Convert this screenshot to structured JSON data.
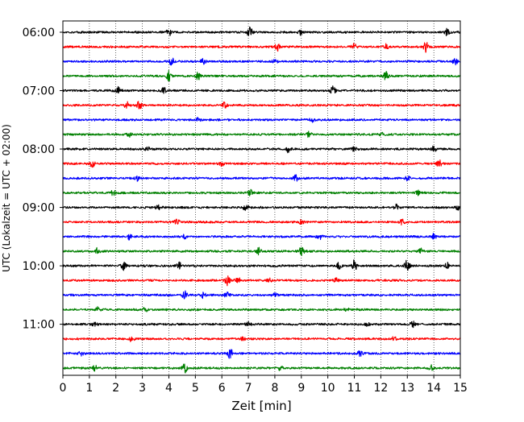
{
  "chart_data": {
    "type": "line",
    "title": "",
    "xlabel": "Zeit  [min]",
    "ylabel": "UTC (Lokalzeit = UTC + 02:00)",
    "xlim": [
      0,
      15
    ],
    "xticks": [
      "0",
      "1",
      "2",
      "3",
      "4",
      "5",
      "6",
      "7",
      "8",
      "9",
      "10",
      "11",
      "12",
      "13",
      "14",
      "15"
    ],
    "y_tick_labels": [
      "06:00",
      "07:00",
      "08:00",
      "09:00",
      "10:00",
      "11:00"
    ],
    "grid": "vertical dotted",
    "trace_interval_minutes": 15,
    "trace_colors": [
      "#000000",
      "#ff0000",
      "#0000ff",
      "#008000"
    ],
    "traces": [
      {
        "start": "06:00",
        "color": "#000000",
        "events": [
          [
            4.0,
            0.5
          ],
          [
            7.05,
            0.8
          ],
          [
            9.0,
            0.4
          ],
          [
            14.5,
            0.6
          ]
        ]
      },
      {
        "start": "06:15",
        "color": "#ff0000",
        "events": [
          [
            8.1,
            0.5
          ],
          [
            11.0,
            0.5
          ],
          [
            12.2,
            0.4
          ],
          [
            13.7,
            0.7
          ]
        ]
      },
      {
        "start": "06:30",
        "color": "#0000ff",
        "events": [
          [
            4.1,
            0.6
          ],
          [
            5.3,
            0.4
          ],
          [
            8.0,
            0.3
          ],
          [
            14.8,
            0.4
          ]
        ]
      },
      {
        "start": "06:45",
        "color": "#008000",
        "events": [
          [
            4.0,
            0.7
          ],
          [
            5.1,
            0.5
          ],
          [
            12.2,
            0.6
          ]
        ]
      },
      {
        "start": "07:00",
        "color": "#000000",
        "events": [
          [
            2.1,
            0.5
          ],
          [
            3.8,
            0.4
          ],
          [
            10.2,
            0.6
          ]
        ]
      },
      {
        "start": "07:15",
        "color": "#ff0000",
        "events": [
          [
            2.4,
            0.5
          ],
          [
            2.9,
            0.7
          ],
          [
            6.1,
            0.4
          ]
        ]
      },
      {
        "start": "07:30",
        "color": "#0000ff",
        "events": [
          [
            5.1,
            0.3
          ],
          [
            9.4,
            0.3
          ]
        ]
      },
      {
        "start": "07:45",
        "color": "#008000",
        "events": [
          [
            2.5,
            0.3
          ],
          [
            9.3,
            0.4
          ],
          [
            12.0,
            0.3
          ]
        ]
      },
      {
        "start": "08:00",
        "color": "#000000",
        "events": [
          [
            3.2,
            0.3
          ],
          [
            8.5,
            0.5
          ],
          [
            11.0,
            0.3
          ],
          [
            14.0,
            0.4
          ]
        ]
      },
      {
        "start": "08:15",
        "color": "#ff0000",
        "events": [
          [
            1.1,
            0.6
          ],
          [
            6.0,
            0.3
          ],
          [
            14.2,
            0.5
          ]
        ]
      },
      {
        "start": "08:30",
        "color": "#0000ff",
        "events": [
          [
            2.8,
            0.3
          ],
          [
            8.8,
            0.5
          ],
          [
            13.0,
            0.3
          ]
        ]
      },
      {
        "start": "08:45",
        "color": "#008000",
        "events": [
          [
            1.9,
            0.4
          ],
          [
            7.1,
            0.5
          ],
          [
            13.4,
            0.3
          ]
        ]
      },
      {
        "start": "09:00",
        "color": "#000000",
        "events": [
          [
            3.6,
            0.3
          ],
          [
            6.9,
            0.4
          ],
          [
            12.6,
            0.5
          ],
          [
            14.9,
            0.4
          ]
        ]
      },
      {
        "start": "09:15",
        "color": "#ff0000",
        "events": [
          [
            4.3,
            0.4
          ],
          [
            9.0,
            0.3
          ],
          [
            12.8,
            0.4
          ]
        ]
      },
      {
        "start": "09:30",
        "color": "#0000ff",
        "events": [
          [
            2.5,
            0.4
          ],
          [
            4.6,
            0.3
          ],
          [
            9.7,
            0.4
          ],
          [
            14.0,
            0.4
          ]
        ]
      },
      {
        "start": "09:45",
        "color": "#008000",
        "events": [
          [
            1.3,
            0.4
          ],
          [
            7.4,
            0.5
          ],
          [
            9.0,
            0.6
          ],
          [
            13.5,
            0.4
          ]
        ]
      },
      {
        "start": "10:00",
        "color": "#000000",
        "events": [
          [
            2.3,
            0.6
          ],
          [
            4.4,
            0.5
          ],
          [
            10.4,
            0.5
          ],
          [
            11.0,
            0.9
          ],
          [
            13.0,
            0.9
          ],
          [
            14.5,
            0.4
          ]
        ]
      },
      {
        "start": "10:15",
        "color": "#ff0000",
        "events": [
          [
            6.2,
            0.7
          ],
          [
            6.6,
            0.5
          ],
          [
            7.8,
            0.3
          ],
          [
            10.3,
            0.3
          ]
        ]
      },
      {
        "start": "10:30",
        "color": "#0000ff",
        "events": [
          [
            4.6,
            0.7
          ],
          [
            5.3,
            0.4
          ],
          [
            6.2,
            0.5
          ],
          [
            8.0,
            0.3
          ]
        ]
      },
      {
        "start": "10:45",
        "color": "#008000",
        "events": [
          [
            1.3,
            0.3
          ],
          [
            3.1,
            0.3
          ],
          [
            10.7,
            0.3
          ]
        ]
      },
      {
        "start": "11:00",
        "color": "#000000",
        "events": [
          [
            1.2,
            0.3
          ],
          [
            7.0,
            0.4
          ],
          [
            11.5,
            0.3
          ],
          [
            13.2,
            0.4
          ]
        ]
      },
      {
        "start": "11:15",
        "color": "#ff0000",
        "events": [
          [
            2.6,
            0.4
          ],
          [
            6.8,
            0.3
          ],
          [
            12.5,
            0.3
          ]
        ]
      },
      {
        "start": "11:30",
        "color": "#0000ff",
        "events": [
          [
            0.7,
            0.3
          ],
          [
            6.3,
            1.0
          ],
          [
            11.2,
            0.4
          ]
        ]
      },
      {
        "start": "11:45",
        "color": "#008000",
        "events": [
          [
            1.2,
            0.4
          ],
          [
            4.6,
            0.7
          ],
          [
            8.2,
            0.3
          ],
          [
            13.9,
            0.4
          ]
        ]
      }
    ]
  }
}
